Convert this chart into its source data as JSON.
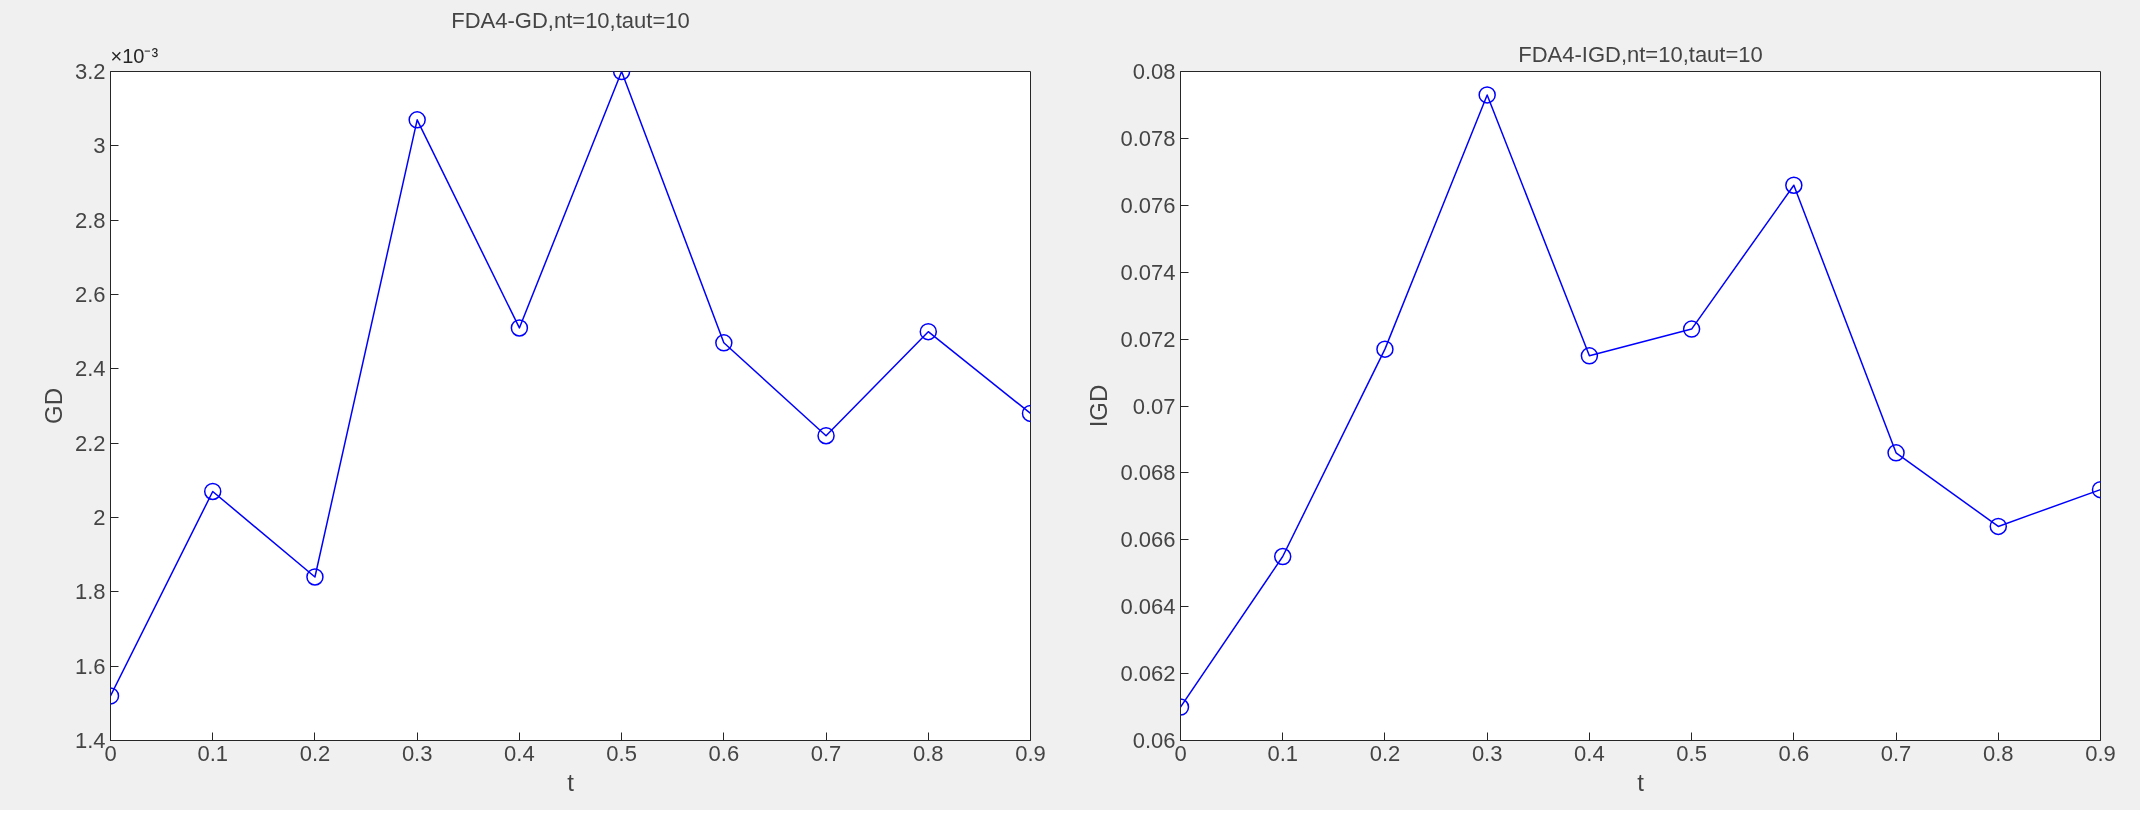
{
  "chart_data": [
    {
      "type": "line",
      "title": "FDA4-GD,nt=10,taut=10",
      "xlabel": "t",
      "ylabel": "GD",
      "annotations": [
        "×10⁻³"
      ],
      "marker": "circle",
      "line_style": "solid",
      "x": [
        0,
        0.1,
        0.2,
        0.3,
        0.4,
        0.5,
        0.6,
        0.7,
        0.8,
        0.9
      ],
      "series": [
        {
          "color": "#0000ff",
          "values": [
            1.52,
            2.07,
            1.84,
            3.07,
            2.51,
            3.2,
            2.47,
            2.22,
            2.5,
            2.28
          ]
        }
      ],
      "xlim": [
        0,
        0.9
      ],
      "ylim": [
        1.4,
        3.2
      ],
      "xticks": [
        0,
        0.1,
        0.2,
        0.3,
        0.4,
        0.5,
        0.6,
        0.7,
        0.8,
        0.9
      ],
      "yticks": [
        1.4,
        1.6,
        1.8,
        2,
        2.2,
        2.4,
        2.6,
        2.8,
        3,
        3.2
      ]
    },
    {
      "type": "line",
      "title": "FDA4-IGD,nt=10,taut=10",
      "xlabel": "t",
      "ylabel": "IGD",
      "marker": "circle",
      "line_style": "solid",
      "x": [
        0,
        0.1,
        0.2,
        0.3,
        0.4,
        0.5,
        0.6,
        0.7,
        0.8,
        0.9
      ],
      "series": [
        {
          "color": "#0000ff",
          "values": [
            0.061,
            0.0655,
            0.0717,
            0.0793,
            0.0715,
            0.0723,
            0.0766,
            0.0686,
            0.0664,
            0.0675
          ]
        }
      ],
      "xlim": [
        0,
        0.9
      ],
      "ylim": [
        0.06,
        0.08
      ],
      "xticks": [
        0,
        0.1,
        0.2,
        0.3,
        0.4,
        0.5,
        0.6,
        0.7,
        0.8,
        0.9
      ],
      "yticks": [
        0.06,
        0.062,
        0.064,
        0.066,
        0.068,
        0.07,
        0.072,
        0.074,
        0.076,
        0.078,
        0.08
      ]
    }
  ]
}
